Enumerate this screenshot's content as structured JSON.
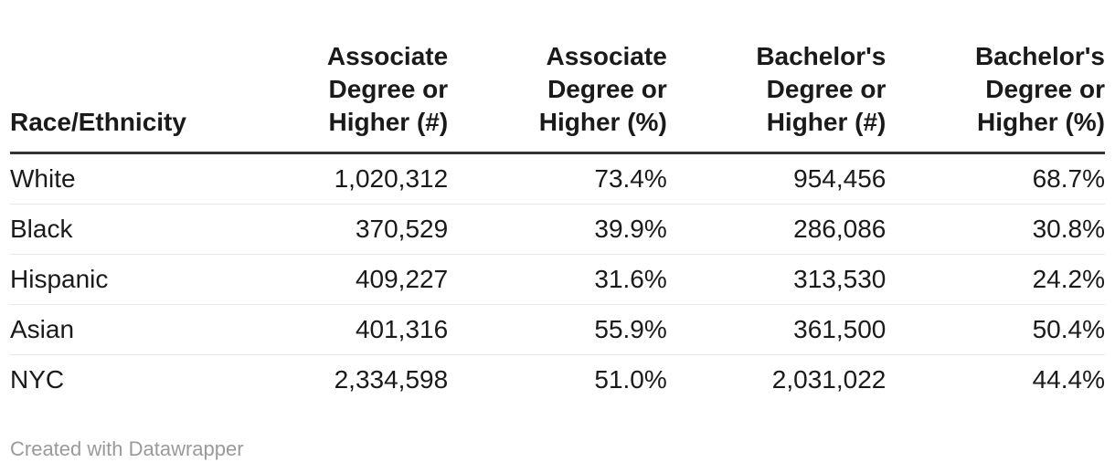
{
  "table": {
    "columns": [
      {
        "label": "Race/Ethnicity"
      },
      {
        "label": "Associate\nDegree or\nHigher (#)"
      },
      {
        "label": "Associate\nDegree or\nHigher (%)"
      },
      {
        "label": "Bachelor's\nDegree or\nHigher (#)"
      },
      {
        "label": "Bachelor's\nDegree or\nHigher (%)"
      }
    ],
    "rows": [
      [
        "White",
        "1,020,312",
        "73.4%",
        "954,456",
        "68.7%"
      ],
      [
        "Black",
        "370,529",
        "39.9%",
        "286,086",
        "30.8%"
      ],
      [
        "Hispanic",
        "409,227",
        "31.6%",
        "313,530",
        "24.2%"
      ],
      [
        "Asian",
        "401,316",
        "55.9%",
        "361,500",
        "50.4%"
      ],
      [
        "NYC",
        "2,334,598",
        "51.0%",
        "2,031,022",
        "44.4%"
      ]
    ]
  },
  "footer": {
    "credit": "Created with Datawrapper"
  },
  "colors": {
    "background": "#ffffff",
    "text": "#1a1a1a",
    "header_border": "#333333",
    "row_divider": "#e8e8e8",
    "footer_text": "#9a9a9a"
  },
  "chart_data": {
    "type": "table",
    "title": "",
    "columns": [
      "Race/Ethnicity",
      "Associate Degree or Higher (#)",
      "Associate Degree or Higher (%)",
      "Bachelor's Degree or Higher (#)",
      "Bachelor's Degree or Higher (%)"
    ],
    "rows": [
      [
        "White",
        1020312,
        73.4,
        954456,
        68.7
      ],
      [
        "Black",
        370529,
        39.9,
        286086,
        30.8
      ],
      [
        "Hispanic",
        409227,
        31.6,
        313530,
        24.2
      ],
      [
        "Asian",
        401316,
        55.9,
        361500,
        50.4
      ],
      [
        "NYC",
        2334598,
        51.0,
        2031022,
        44.4
      ]
    ],
    "credit": "Created with Datawrapper"
  }
}
